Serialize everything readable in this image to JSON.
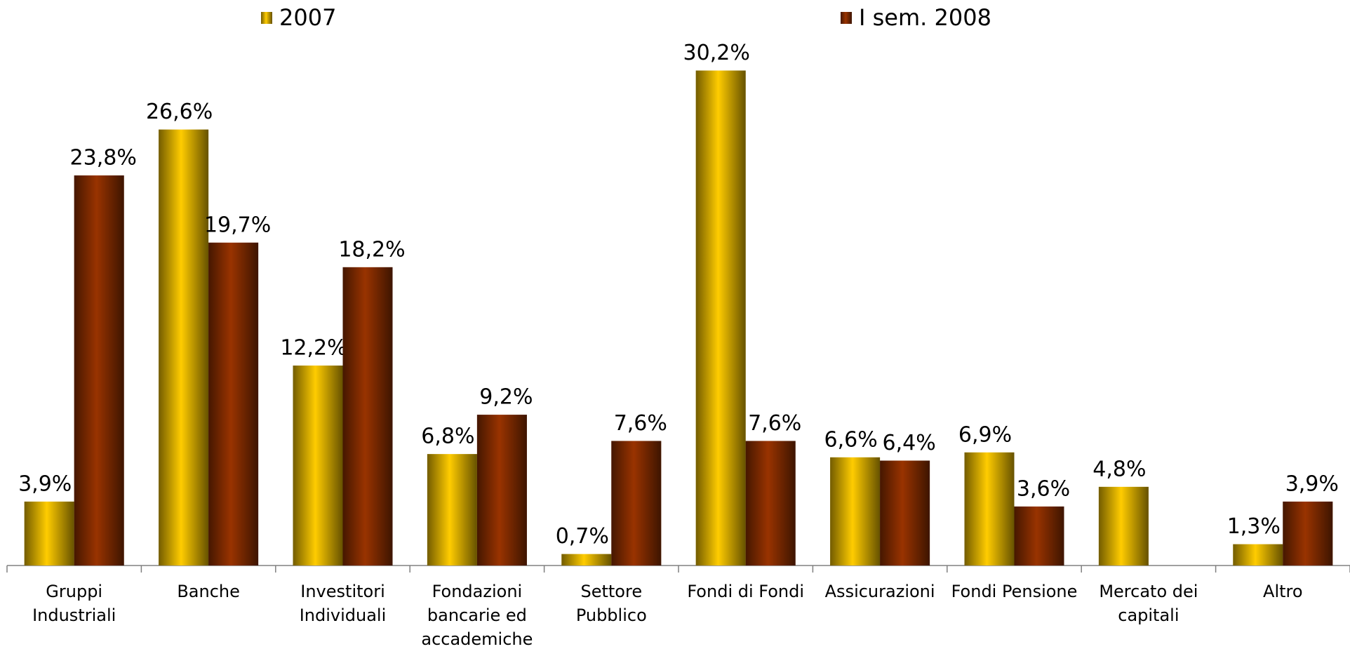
{
  "chart_data": {
    "type": "bar",
    "categories": [
      "Gruppi Industriali",
      "Banche",
      "Investitori Individuali",
      "Fondazioni bancarie ed accademiche",
      "Settore Pubblico",
      "Fondi di Fondi",
      "Assicurazioni",
      "Fondi Pensione",
      "Mercato dei capitali",
      "Altro"
    ],
    "series": [
      {
        "name": "2007",
        "color": "#ffcc00",
        "values": [
          3.9,
          26.6,
          12.2,
          6.8,
          0.7,
          30.2,
          6.6,
          6.9,
          4.8,
          1.3
        ],
        "value_labels": [
          "3,9%",
          "26,6%",
          "12,2%",
          "6,8%",
          "0,7%",
          "30,2%",
          "6,6%",
          "6,9%",
          "4,8%",
          "1,3%"
        ]
      },
      {
        "name": "I sem. 2008",
        "color": "#993300",
        "values": [
          23.8,
          19.7,
          18.2,
          9.2,
          7.6,
          7.6,
          6.4,
          3.6,
          null,
          3.9
        ],
        "value_labels": [
          "23,8%",
          "19,7%",
          "18,2%",
          "9,2%",
          "7,6%",
          "7,6%",
          "6,4%",
          "3,6%",
          null,
          "3,9%"
        ]
      }
    ]
  }
}
